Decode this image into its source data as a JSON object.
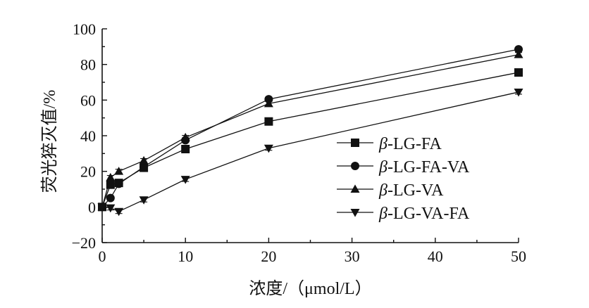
{
  "chart_data": {
    "type": "line",
    "xlabel": "浓度/（μmol/L）",
    "ylabel": "荧光猝灭值/%",
    "xlim": [
      0,
      50
    ],
    "ylim": [
      -20,
      100
    ],
    "x_ticks": [
      "0",
      "10",
      "20",
      "30",
      "40",
      "50"
    ],
    "y_ticks": [
      "−20",
      "0",
      "20",
      "40",
      "60",
      "80",
      "100"
    ],
    "grid": false,
    "legend_position": "right",
    "x": [
      0,
      1,
      2,
      5,
      10,
      20,
      50
    ],
    "series": [
      {
        "name": "β-LG-FA",
        "marker": "square",
        "values": [
          0,
          12.5,
          13.5,
          22,
          32.5,
          48,
          75.5
        ]
      },
      {
        "name": "β-LG-FA-VA",
        "marker": "circle",
        "values": [
          0,
          5,
          13,
          22.5,
          37.5,
          60.5,
          88.5
        ]
      },
      {
        "name": "β-LG-VA",
        "marker": "triangle-up",
        "values": [
          0,
          16.5,
          20,
          26,
          39,
          58,
          85.5
        ]
      },
      {
        "name": "β-LG-VA-FA",
        "marker": "triangle-down",
        "values": [
          0,
          -0.5,
          -2.5,
          4,
          15.5,
          33,
          64.5
        ]
      }
    ]
  }
}
